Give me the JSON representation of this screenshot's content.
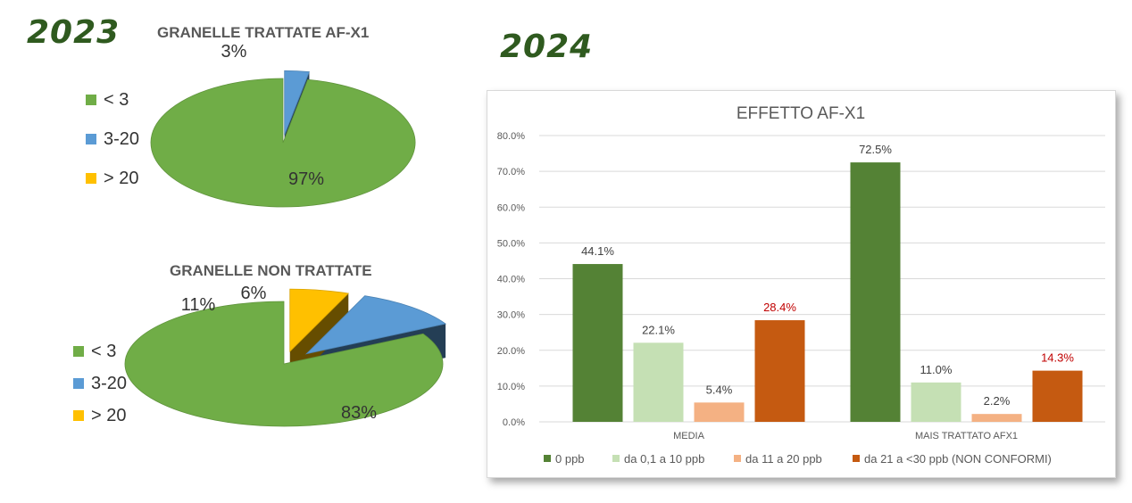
{
  "years": {
    "left": "2023",
    "right": "2024"
  },
  "pies": [
    {
      "title": "GRANELLE TRATTATE  AF-X1",
      "legend": [
        {
          "label": "< 3",
          "color": "#70ad47"
        },
        {
          "label": "3-20",
          "color": "#5b9bd5"
        },
        {
          "label": "> 20",
          "color": "#ffc000"
        }
      ],
      "slices": [
        {
          "category": "< 3",
          "value": 97,
          "label": "97%"
        },
        {
          "category": "3-20",
          "value": 3,
          "label": "3%"
        }
      ]
    },
    {
      "title": "GRANELLE NON TRATTATE",
      "legend": [
        {
          "label": "< 3",
          "color": "#70ad47"
        },
        {
          "label": "3-20",
          "color": "#5b9bd5"
        },
        {
          "label": "> 20",
          "color": "#ffc000"
        }
      ],
      "slices": [
        {
          "category": "< 3",
          "value": 83,
          "label": "83%"
        },
        {
          "category": "3-20",
          "value": 11,
          "label": "11%"
        },
        {
          "category": "> 20",
          "value": 6,
          "label": "6%"
        }
      ]
    }
  ],
  "chart_data": {
    "type": "bar",
    "title": "EFFETTO AF-X1",
    "categories": [
      "MEDIA",
      "MAIS TRATTATO AFX1"
    ],
    "series": [
      {
        "name": "0 ppb",
        "color": "#548235",
        "values": [
          44.1,
          72.5
        ],
        "labels": [
          "44.1%",
          "72.5%"
        ],
        "label_color": "#404040"
      },
      {
        "name": "da 0,1 a 10 ppb",
        "color": "#c5e0b4",
        "values": [
          22.1,
          11.0
        ],
        "labels": [
          "22.1%",
          "11.0%"
        ],
        "label_color": "#404040"
      },
      {
        "name": "da 11 a 20 ppb",
        "color": "#f4b183",
        "values": [
          5.4,
          2.2
        ],
        "labels": [
          "5.4%",
          "2.2%"
        ],
        "label_color": "#404040"
      },
      {
        "name": "da 21 a <30 ppb (NON CONFORMI)",
        "color": "#c55a11",
        "values": [
          28.4,
          14.3
        ],
        "labels": [
          "28.4%",
          "14.3%"
        ],
        "label_color": "#c00000"
      }
    ],
    "yticks": [
      "0.0%",
      "10.0%",
      "20.0%",
      "30.0%",
      "40.0%",
      "50.0%",
      "60.0%",
      "70.0%",
      "80.0%"
    ],
    "ylim": [
      0,
      80
    ],
    "grid": true,
    "legend_position": "bottom"
  }
}
